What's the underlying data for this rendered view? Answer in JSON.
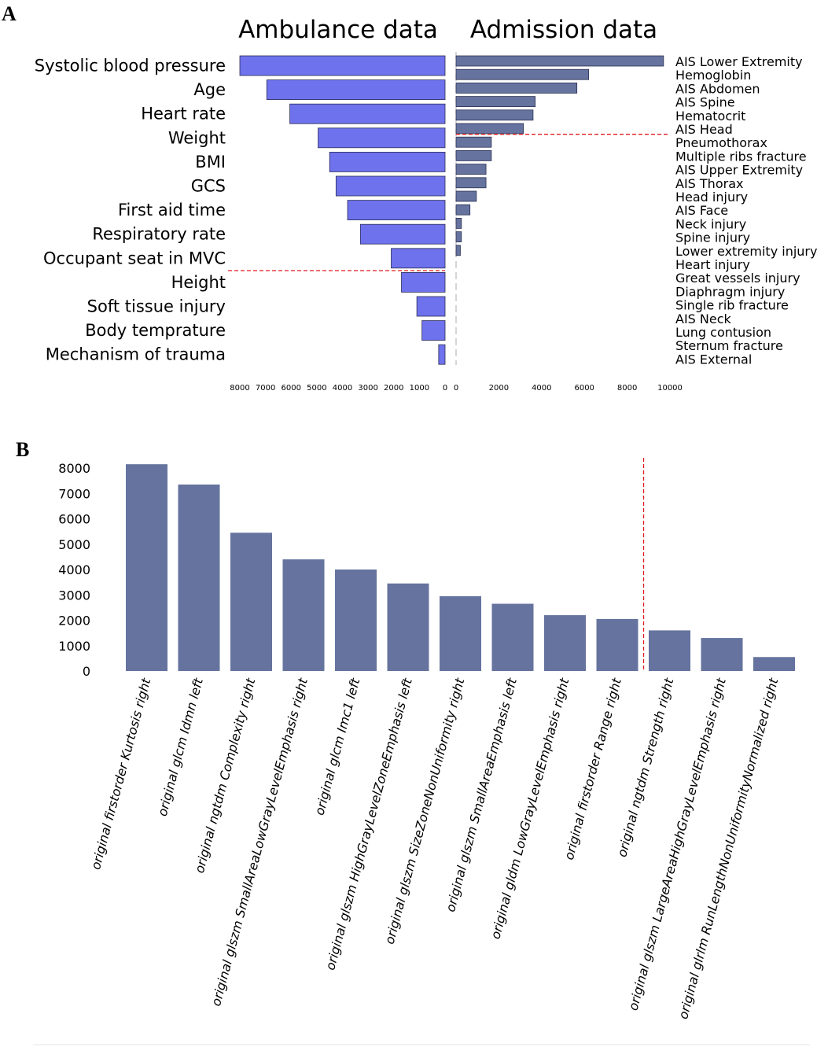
{
  "panel_labels": {
    "a": "A",
    "b": "B"
  },
  "colors": {
    "ambulance_bar": "#6e72ec",
    "admission_bar": "#65739e",
    "bar_b": "#65739e",
    "cutoff_line": "#e0191f",
    "zero_line": "#bbbbbb"
  },
  "chart_data": [
    {
      "id": "ambulance",
      "type": "bar",
      "orientation": "horizontal",
      "direction": "leftward",
      "title": "Ambulance data",
      "categories": [
        "Systolic blood pressure",
        "Age",
        "Heart rate",
        "Weight",
        "BMI",
        "GCS",
        "First aid time",
        "Respiratory rate",
        "Occupant seat in MVC",
        "Height",
        "Soft tissue injury",
        "Body temprature",
        "Mechanism of trauma"
      ],
      "values": [
        8000,
        6950,
        6050,
        4950,
        4500,
        4250,
        3800,
        3300,
        2100,
        1700,
        1100,
        900,
        250
      ],
      "cutoff_after_index": 8,
      "xlim": [
        0,
        8000
      ],
      "ticks": [
        8000,
        7000,
        6000,
        5000,
        4000,
        3000,
        2000,
        1000,
        0
      ]
    },
    {
      "id": "admission",
      "type": "bar",
      "orientation": "horizontal",
      "direction": "rightward",
      "title": "Admission data",
      "categories": [
        "AIS Lower Extremity",
        "Hemoglobin",
        "AIS Abdomen",
        "AIS Spine",
        "Hematocrit",
        "AIS Head",
        "Pneumothorax",
        "Multiple ribs fracture",
        "AIS Upper Extremity",
        "AIS Thorax",
        "Head injury",
        "AIS Face",
        "Neck injury",
        "Spine injury",
        "Lower extremity injury",
        "Heart injury",
        "Great vessels injury",
        "Diaphragm injury",
        "Single rib fracture",
        "AIS Neck",
        "Lung contusion",
        "Sternum fracture",
        "AIS External"
      ],
      "values": [
        9700,
        6200,
        5650,
        3700,
        3600,
        3150,
        1650,
        1650,
        1400,
        1400,
        950,
        650,
        250,
        250,
        200,
        0,
        0,
        0,
        0,
        0,
        0,
        0,
        0
      ],
      "cutoff_after_index": 5,
      "xlim": [
        0,
        10000
      ],
      "ticks": [
        0,
        2000,
        4000,
        6000,
        8000,
        10000
      ]
    },
    {
      "id": "radiomics",
      "type": "bar",
      "orientation": "vertical",
      "categories": [
        "original firstorder Kurtosis right",
        "original glcm Idmn left",
        "original ngtdm Complexity right",
        "original glszm SmallAreaLowGrayLevelEmphasis right",
        "original glcm Imc1 left",
        "original glszm HighGrayLevelZoneEmphasis left",
        "original glszm SizeZoneNonUniformity right",
        "original glszm SmallAreaEmphasis left",
        "original gldm LowGrayLevelEmphasis right",
        "original firstorder Range right",
        "original ngtdm Strength right",
        "original glszm LargeAreaHighGrayLevelEmphasis right",
        "original glrlm RunLengthNonUniformityNormalized right"
      ],
      "values": [
        8150,
        7350,
        5450,
        4400,
        4000,
        3450,
        2950,
        2650,
        2200,
        2050,
        1600,
        1300,
        550
      ],
      "cutoff_after_index": 9,
      "ylim": [
        0,
        8000
      ],
      "ticks": [
        0,
        1000,
        2000,
        3000,
        4000,
        5000,
        6000,
        7000,
        8000
      ]
    }
  ]
}
